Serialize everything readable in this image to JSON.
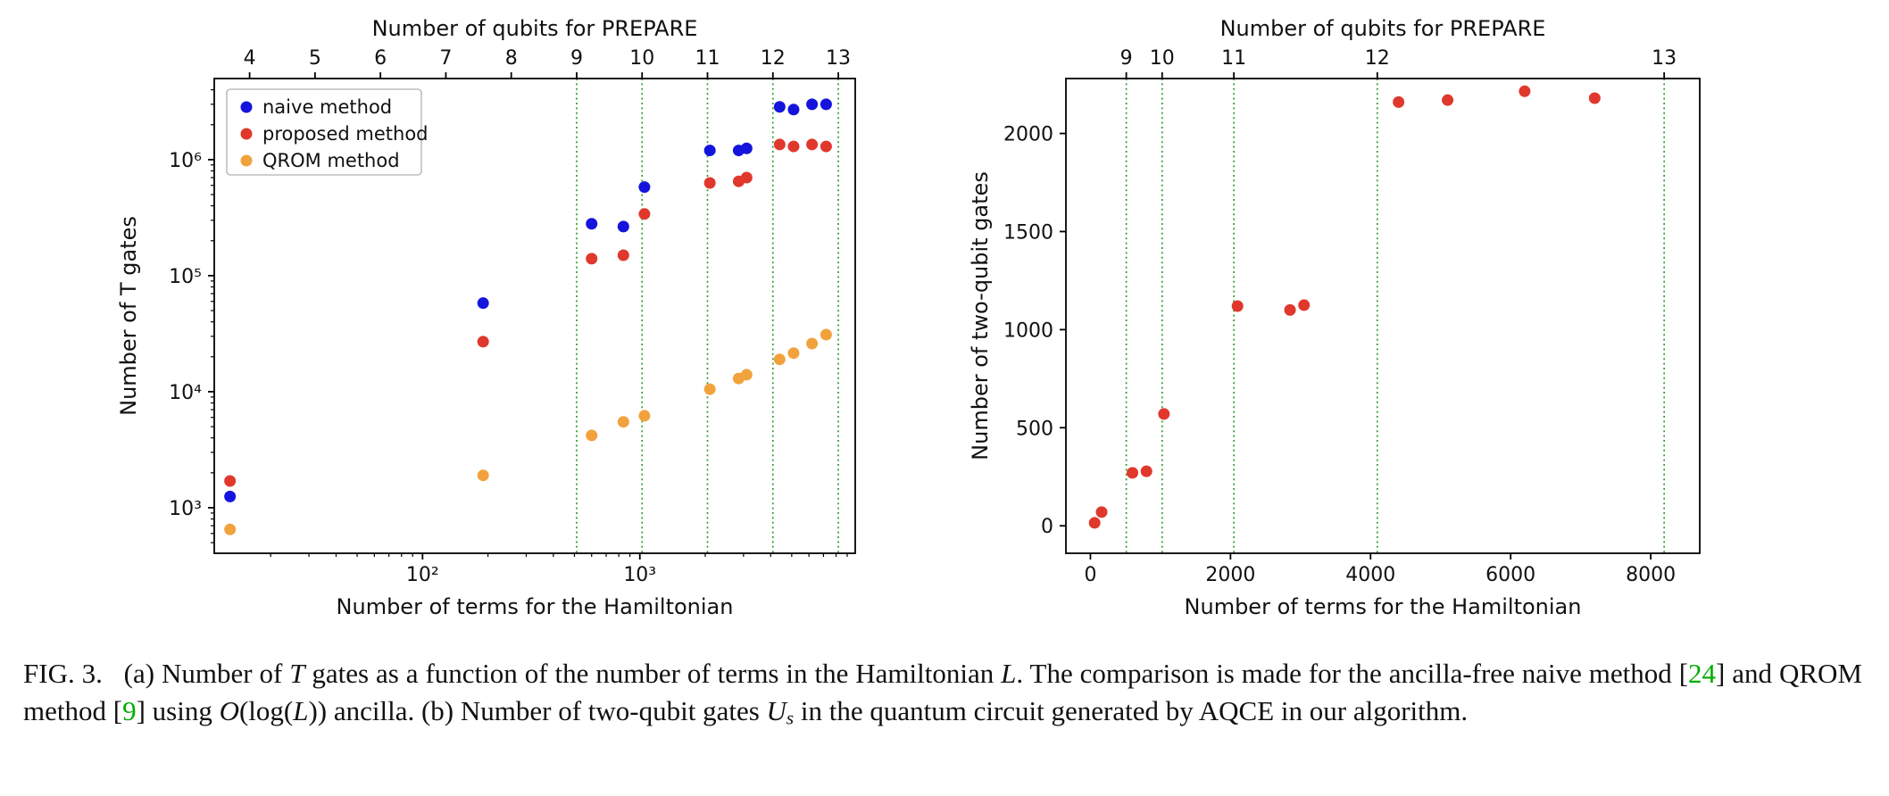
{
  "figure": {
    "label": "FIG. 3.",
    "panel_a_name": "T gates vs Hamiltonian terms",
    "panel_b_name": "Two-qubit gates vs Hamiltonian terms"
  },
  "colors": {
    "naive_blue": "#1414dd",
    "proposed_red": "#e0382c",
    "qrom_orange": "#f2a23d",
    "vline_green": "#2e9e2e",
    "citation_green": "#00ad00",
    "axis_black": "#111111"
  },
  "chart_data": [
    {
      "type": "scatter",
      "top_label": "Number of qubits for PREPARE",
      "xlabel": "Number of terms for the Hamiltonian",
      "ylabel": "Number of T gates",
      "x_scale": "log",
      "y_scale": "log",
      "xlim": [
        11,
        9800
      ],
      "ylim": [
        405,
        5000000
      ],
      "x_major_ticks": [
        100,
        1000
      ],
      "x_major_labels": [
        "10²",
        "10³"
      ],
      "y_major_ticks": [
        1000,
        10000,
        100000,
        1000000
      ],
      "y_major_labels": [
        "10³",
        "10⁴",
        "10⁵",
        "10⁶"
      ],
      "top_ticks": [
        {
          "v": 16,
          "label": "4"
        },
        {
          "v": 32,
          "label": "5"
        },
        {
          "v": 64,
          "label": "6"
        },
        {
          "v": 128,
          "label": "7"
        },
        {
          "v": 256,
          "label": "8"
        },
        {
          "v": 512,
          "label": "9"
        },
        {
          "v": 1024,
          "label": "10"
        },
        {
          "v": 2048,
          "label": "11"
        },
        {
          "v": 4096,
          "label": "12"
        },
        {
          "v": 8192,
          "label": "13"
        }
      ],
      "vlines": [
        512,
        1024,
        2048,
        4096,
        8192
      ],
      "vline_color": "#2e9e2e",
      "legend_loc": "upper left",
      "legend_show": true,
      "series": [
        {
          "name": "naive method",
          "color": "#1414dd",
          "points": [
            [
              13,
              1250
            ],
            [
              190,
              58000
            ],
            [
              600,
              280000
            ],
            [
              840,
              265000
            ],
            [
              1050,
              580000
            ],
            [
              2100,
              1200000
            ],
            [
              2850,
              1200000
            ],
            [
              3100,
              1250000
            ],
            [
              4400,
              2850000
            ],
            [
              5100,
              2700000
            ],
            [
              6200,
              3000000
            ],
            [
              7200,
              3000000
            ]
          ]
        },
        {
          "name": "proposed method",
          "color": "#e0382c",
          "points": [
            [
              13,
              1700
            ],
            [
              190,
              27000
            ],
            [
              600,
              140000
            ],
            [
              840,
              150000
            ],
            [
              1050,
              340000
            ],
            [
              2100,
              630000
            ],
            [
              2850,
              650000
            ],
            [
              3100,
              700000
            ],
            [
              4400,
              1350000
            ],
            [
              5100,
              1300000
            ],
            [
              6200,
              1350000
            ],
            [
              7200,
              1300000
            ]
          ]
        },
        {
          "name": "QROM method",
          "color": "#f2a23d",
          "points": [
            [
              13,
              650
            ],
            [
              190,
              1900
            ],
            [
              600,
              4200
            ],
            [
              840,
              5500
            ],
            [
              1050,
              6200
            ],
            [
              2100,
              10500
            ],
            [
              2850,
              13000
            ],
            [
              3100,
              14000
            ],
            [
              4400,
              19000
            ],
            [
              5100,
              21500
            ],
            [
              6200,
              26000
            ],
            [
              7200,
              31000
            ]
          ]
        }
      ]
    },
    {
      "type": "scatter",
      "top_label": "Number of qubits for PREPARE",
      "xlabel": "Number of terms for the Hamiltonian",
      "ylabel": "Number of two-qubit gates",
      "x_scale": "linear",
      "y_scale": "linear",
      "xlim": [
        -350,
        8700
      ],
      "ylim": [
        -140,
        2280
      ],
      "x_major_ticks": [
        0,
        2000,
        4000,
        6000,
        8000
      ],
      "x_major_labels": [
        "0",
        "2000",
        "4000",
        "6000",
        "8000"
      ],
      "y_major_ticks": [
        0,
        500,
        1000,
        1500,
        2000
      ],
      "y_major_labels": [
        "0",
        "500",
        "1000",
        "1500",
        "2000"
      ],
      "top_ticks": [
        {
          "v": 512,
          "label": "9"
        },
        {
          "v": 1024,
          "label": "10"
        },
        {
          "v": 2048,
          "label": "11"
        },
        {
          "v": 4096,
          "label": "12"
        },
        {
          "v": 8192,
          "label": "13"
        }
      ],
      "vlines": [
        512,
        1024,
        2048,
        4096,
        8192
      ],
      "vline_color": "#2e9e2e",
      "legend_show": false,
      "series": [
        {
          "name": "two-qubit gates",
          "color": "#e0382c",
          "points": [
            [
              60,
              15
            ],
            [
              160,
              70
            ],
            [
              600,
              270
            ],
            [
              800,
              278
            ],
            [
              1050,
              570
            ],
            [
              2100,
              1120
            ],
            [
              2850,
              1100
            ],
            [
              3050,
              1125
            ],
            [
              4400,
              2160
            ],
            [
              5100,
              2170
            ],
            [
              6200,
              2215
            ],
            [
              7200,
              2180
            ]
          ]
        }
      ]
    }
  ],
  "caption": {
    "segments": [
      {
        "text": "FIG. 3.   (a) Number of ",
        "style": "normal"
      },
      {
        "text": "T",
        "style": "italic"
      },
      {
        "text": " gates as a function of the number of terms in the Hamiltonian ",
        "style": "normal"
      },
      {
        "text": "L",
        "style": "italic"
      },
      {
        "text": ". The comparison is made for the ancilla-free naive method [",
        "style": "normal"
      },
      {
        "text": "24",
        "style": "cite"
      },
      {
        "text": "] and QROM method [",
        "style": "normal"
      },
      {
        "text": "9",
        "style": "cite"
      },
      {
        "text": "] using ",
        "style": "normal"
      },
      {
        "text": "O",
        "style": "italic"
      },
      {
        "text": "(log(",
        "style": "normal"
      },
      {
        "text": "L",
        "style": "italic"
      },
      {
        "text": ")) ancilla. (b) Number of two-qubit gates ",
        "style": "normal"
      },
      {
        "text": "U",
        "style": "scriptU"
      },
      {
        "text": "s",
        "style": "sub"
      },
      {
        "text": " in the quantum circuit generated by AQCE in our algorithm.",
        "style": "normal"
      }
    ]
  }
}
